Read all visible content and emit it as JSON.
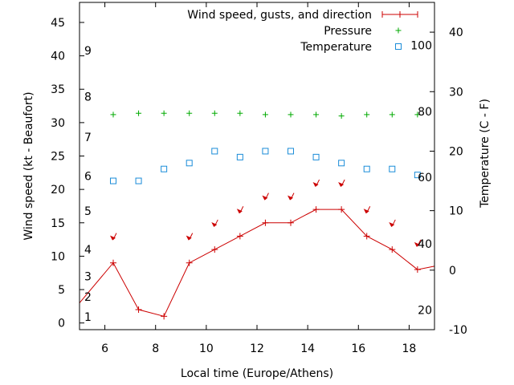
{
  "chart_data": {
    "type": "line",
    "xlabel": "Local time (Europe/Athens)",
    "ylabel_left": "Wind speed (kt - Beaufort)",
    "ylabel_right": "Temperature (C - F)",
    "xlim": [
      5,
      19
    ],
    "ylim_left": [
      -1,
      48
    ],
    "ylim_right": [
      -10,
      45
    ],
    "x_ticks": [
      6,
      8,
      10,
      12,
      14,
      16,
      18
    ],
    "y_left_ticks": [
      0,
      5,
      10,
      15,
      20,
      25,
      30,
      35,
      40,
      45
    ],
    "y_right_ticks": [
      -10,
      0,
      10,
      20,
      30,
      40
    ],
    "beaufort_labels": [
      {
        "value": 0.9,
        "label": "1"
      },
      {
        "value": 3.9,
        "label": "2"
      },
      {
        "value": 7.0,
        "label": "3"
      },
      {
        "value": 11.0,
        "label": "4"
      },
      {
        "value": 16.8,
        "label": "5"
      },
      {
        "value": 22.0,
        "label": "6"
      },
      {
        "value": 27.8,
        "label": "7"
      },
      {
        "value": 33.9,
        "label": "8"
      },
      {
        "value": 40.8,
        "label": "9"
      }
    ],
    "fahrenheit_labels": [
      {
        "value": -6.7,
        "label": "20"
      },
      {
        "value": 4.4,
        "label": "40"
      },
      {
        "value": 15.6,
        "label": "60"
      },
      {
        "value": 26.7,
        "label": "80"
      },
      {
        "value": 37.8,
        "label": "100"
      }
    ],
    "legend": [
      {
        "label": "Wind speed, gusts, and direction",
        "color": "#cc0000",
        "marker": "line-plus"
      },
      {
        "label": "Pressure",
        "color": "#00aa00",
        "marker": "plus"
      },
      {
        "label": "Temperature",
        "color": "#1a8cd8",
        "marker": "square"
      }
    ],
    "series": [
      {
        "name": "Wind speed",
        "axis": "left",
        "color": "#cc0000",
        "points": [
          [
            5.0,
            3.0
          ],
          [
            6.33,
            9.0
          ],
          [
            7.33,
            2.0
          ],
          [
            8.33,
            1.0
          ],
          [
            9.33,
            9.0
          ],
          [
            10.33,
            11.0
          ],
          [
            11.33,
            13.0
          ],
          [
            12.33,
            15.0
          ],
          [
            13.33,
            15.0
          ],
          [
            14.33,
            17.0
          ],
          [
            15.33,
            17.0
          ],
          [
            16.33,
            13.0
          ],
          [
            17.33,
            11.0
          ],
          [
            18.33,
            8.0
          ],
          [
            19.0,
            8.5
          ]
        ],
        "markers_from_index": 1,
        "markers_to_index": 13
      },
      {
        "name": "Gust direction",
        "axis": "left",
        "color": "#cc0000",
        "points": [
          [
            6.33,
            12.5
          ],
          [
            9.33,
            12.5
          ],
          [
            10.33,
            14.5
          ],
          [
            11.33,
            16.5
          ],
          [
            12.33,
            18.5
          ],
          [
            13.33,
            18.5
          ],
          [
            14.33,
            20.5
          ],
          [
            15.33,
            20.5
          ],
          [
            16.33,
            16.5
          ],
          [
            17.33,
            14.5
          ],
          [
            18.33,
            11.5
          ]
        ]
      },
      {
        "name": "Pressure",
        "axis": "left",
        "color": "#00aa00",
        "points": [
          [
            6.33,
            31.2
          ],
          [
            7.33,
            31.4
          ],
          [
            8.33,
            31.4
          ],
          [
            9.33,
            31.4
          ],
          [
            10.33,
            31.4
          ],
          [
            11.33,
            31.4
          ],
          [
            12.33,
            31.2
          ],
          [
            13.33,
            31.2
          ],
          [
            14.33,
            31.2
          ],
          [
            15.33,
            31.0
          ],
          [
            16.33,
            31.2
          ],
          [
            17.33,
            31.2
          ],
          [
            18.33,
            31.2
          ]
        ]
      },
      {
        "name": "Temperature",
        "axis": "right",
        "color": "#1a8cd8",
        "points": [
          [
            6.33,
            15
          ],
          [
            7.33,
            15
          ],
          [
            8.33,
            17
          ],
          [
            9.33,
            18
          ],
          [
            10.33,
            20
          ],
          [
            11.33,
            19
          ],
          [
            12.33,
            20
          ],
          [
            13.33,
            20
          ],
          [
            14.33,
            19
          ],
          [
            15.33,
            18
          ],
          [
            16.33,
            17
          ],
          [
            17.33,
            17
          ],
          [
            18.33,
            16
          ]
        ]
      }
    ]
  }
}
